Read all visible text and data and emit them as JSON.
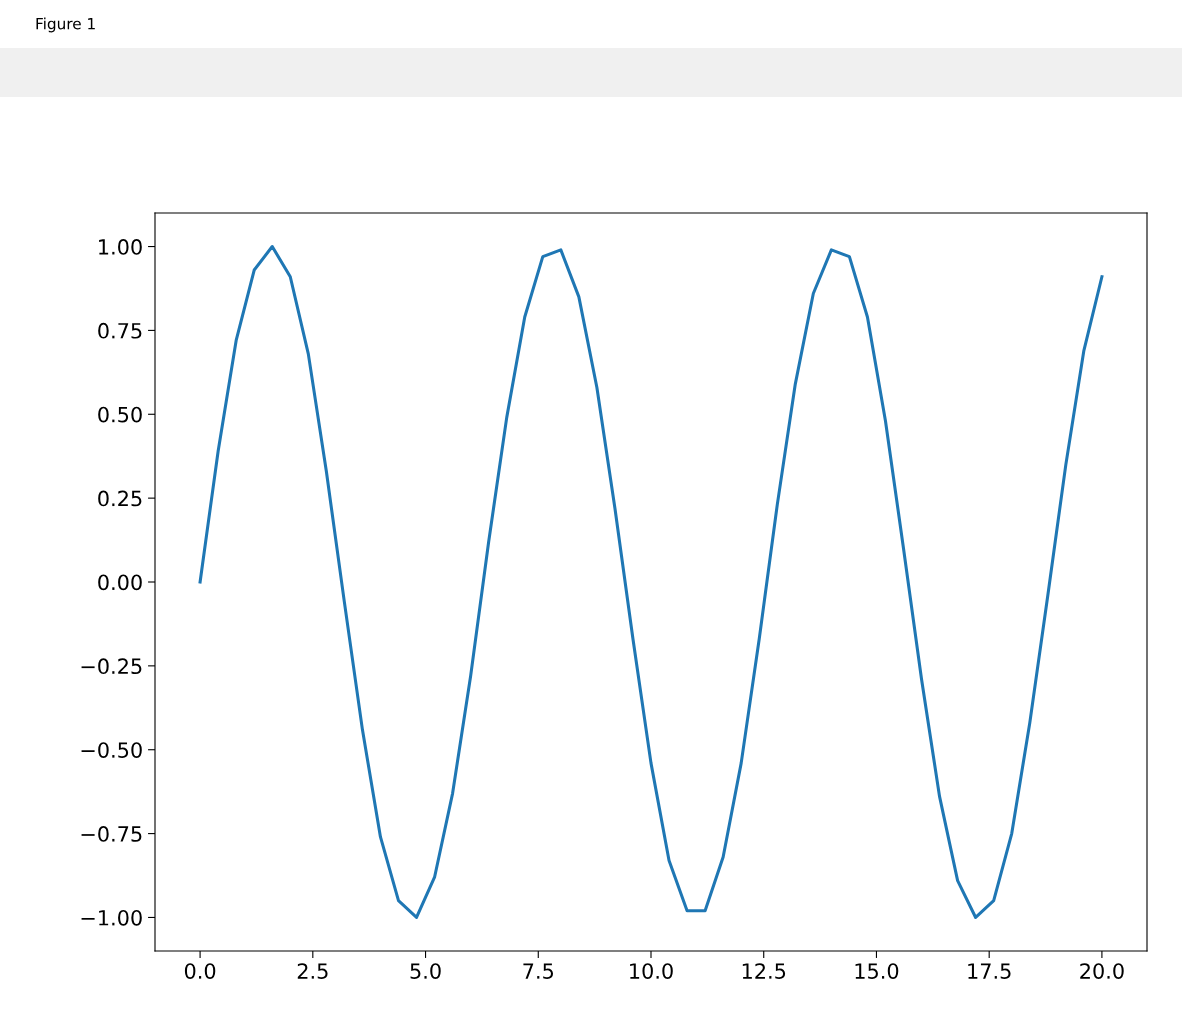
{
  "chart_data": {
    "type": "line",
    "annotations": [
      "Figure 1"
    ],
    "x": [
      0,
      0.4,
      0.8,
      1.2,
      1.6,
      2.0,
      2.4,
      2.8,
      3.2,
      3.6,
      4.0,
      4.4,
      4.8,
      5.2,
      5.6,
      6.0,
      6.4,
      6.8,
      7.2,
      7.6,
      8.0,
      8.4,
      8.8,
      9.2,
      9.6,
      10.0,
      10.4,
      10.8,
      11.2,
      11.6,
      12.0,
      12.4,
      12.8,
      13.2,
      13.6,
      14.0,
      14.4,
      14.8,
      15.2,
      15.6,
      16.0,
      16.4,
      16.8,
      17.2,
      17.6,
      18.0,
      18.4,
      18.8,
      19.2,
      19.6,
      20.0
    ],
    "series": [
      {
        "color": "#1f77b4",
        "values": [
          0,
          0.39,
          0.72,
          0.93,
          1.0,
          0.91,
          0.68,
          0.33,
          -0.06,
          -0.44,
          -0.76,
          -0.95,
          -1.0,
          -0.88,
          -0.63,
          -0.28,
          0.12,
          0.49,
          0.79,
          0.97,
          0.99,
          0.85,
          0.58,
          0.22,
          -0.17,
          -0.54,
          -0.83,
          -0.98,
          -0.98,
          -0.82,
          -0.54,
          -0.17,
          0.23,
          0.59,
          0.86,
          0.99,
          0.97,
          0.79,
          0.48,
          0.1,
          -0.29,
          -0.64,
          -0.89,
          -1.0,
          -0.95,
          -0.75,
          -0.42,
          -0.04,
          0.35,
          0.69,
          0.91
        ]
      }
    ],
    "xlim": [
      -1.0,
      21.0
    ],
    "ylim": [
      -1.1,
      1.1
    ],
    "xticks": [
      {
        "value": 0,
        "label": "0.0"
      },
      {
        "value": 2.5,
        "label": "2.5"
      },
      {
        "value": 5,
        "label": "5.0"
      },
      {
        "value": 7.5,
        "label": "7.5"
      },
      {
        "value": 10,
        "label": "10.0"
      },
      {
        "value": 12.5,
        "label": "12.5"
      },
      {
        "value": 15,
        "label": "15.0"
      },
      {
        "value": 17.5,
        "label": "17.5"
      },
      {
        "value": 20,
        "label": "20.0"
      }
    ],
    "yticks": [
      {
        "value": -1,
        "label": "−1.00"
      },
      {
        "value": -0.75,
        "label": "−0.75"
      },
      {
        "value": -0.5,
        "label": "−0.50"
      },
      {
        "value": -0.25,
        "label": "−0.25"
      },
      {
        "value": 0,
        "label": "0.00"
      },
      {
        "value": 0.25,
        "label": "0.25"
      },
      {
        "value": 0.5,
        "label": "0.50"
      },
      {
        "value": 0.75,
        "label": "0.75"
      },
      {
        "value": 1,
        "label": "1.00"
      }
    ],
    "grid": false,
    "marker": "none",
    "line_style": "solid"
  }
}
